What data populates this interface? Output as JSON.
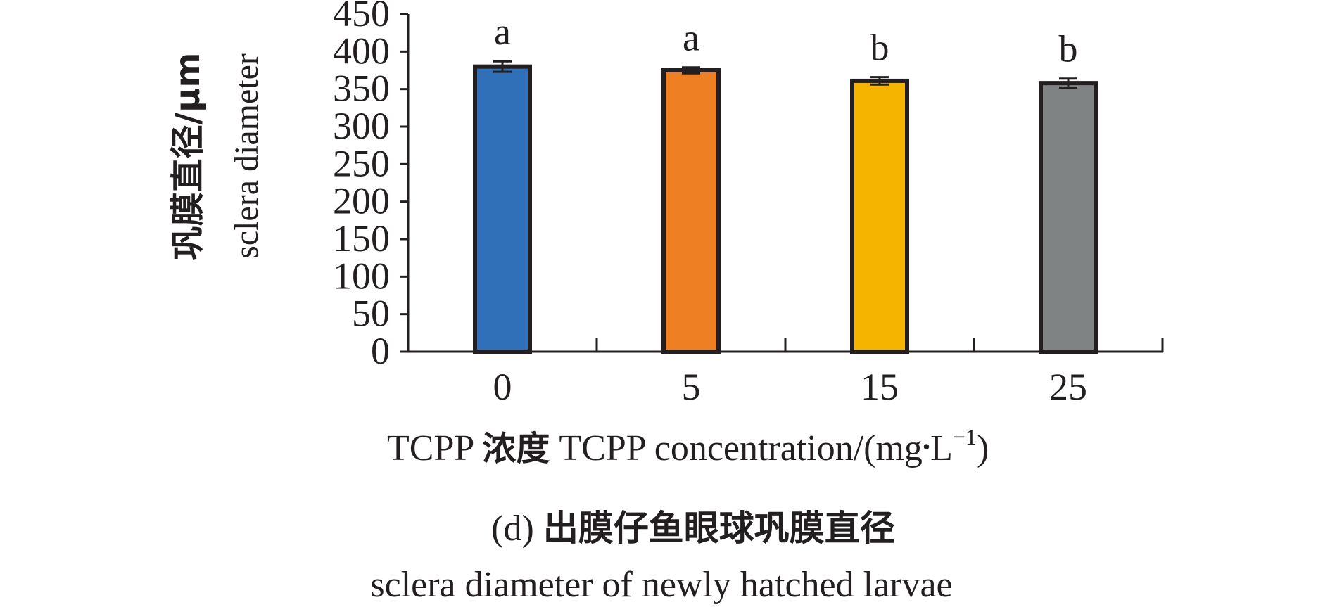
{
  "chart_data": {
    "type": "bar",
    "categories": [
      "0",
      "5",
      "15",
      "25"
    ],
    "values": [
      380,
      375,
      361,
      358
    ],
    "errors": [
      7,
      4,
      5,
      6
    ],
    "significance_letters": [
      "a",
      "a",
      "b",
      "b"
    ],
    "colors": [
      "#3070b8",
      "#ee7f22",
      "#f5b400",
      "#7f8384"
    ],
    "bar_edge_color": "#231f20",
    "ylim": [
      0,
      450
    ],
    "yticks": [
      "0",
      "50",
      "100",
      "150",
      "200",
      "250",
      "300",
      "350",
      "400",
      "450"
    ],
    "ylabel_line1": "巩膜直径/μm",
    "ylabel_line2": "sclera diameter",
    "xlabel": {
      "prefix": "TCPP ",
      "cn": "浓度",
      "rest": " TCPP concentration/(mg",
      "dot": "•",
      "L": "L",
      "sup": "−1",
      "close": ")"
    },
    "caption_prefix": "(d) ",
    "caption_cn": "出膜仔鱼眼球巩膜直径",
    "caption_en": "sclera diameter of newly hatched larvae",
    "grid": false
  }
}
